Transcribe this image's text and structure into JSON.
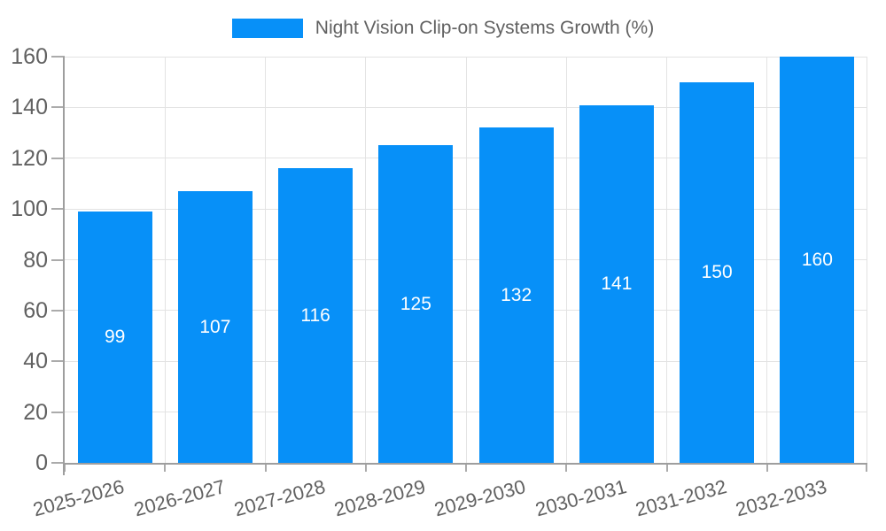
{
  "chart_data": {
    "type": "bar",
    "title": "",
    "categories": [
      "2025-2026",
      "2026-2027",
      "2027-2028",
      "2028-2029",
      "2029-2030",
      "2030-2031",
      "2031-2032",
      "2032-2033"
    ],
    "values": [
      99,
      107,
      116,
      125,
      132,
      141,
      150,
      160
    ],
    "series_name": "Night Vision Clip-on Systems Growth (%)",
    "legend": {
      "label": "Night Vision Clip-on Systems Growth (%)",
      "position": "top"
    },
    "xlabel": "",
    "ylabel": "",
    "ylim": [
      0,
      160
    ],
    "yticks": [
      0,
      20,
      40,
      60,
      80,
      100,
      120,
      140,
      160
    ],
    "grid": true,
    "bar_value_labels_shown": true,
    "x_tick_rotation_deg": -15,
    "colors": {
      "bar": "#0790F8",
      "grid": "#e3e3e3",
      "axis": "#9e9e9e",
      "tick": "#ababab",
      "tick_label": "#616161",
      "bar_label": "#ffffff",
      "background": "#ffffff"
    }
  }
}
